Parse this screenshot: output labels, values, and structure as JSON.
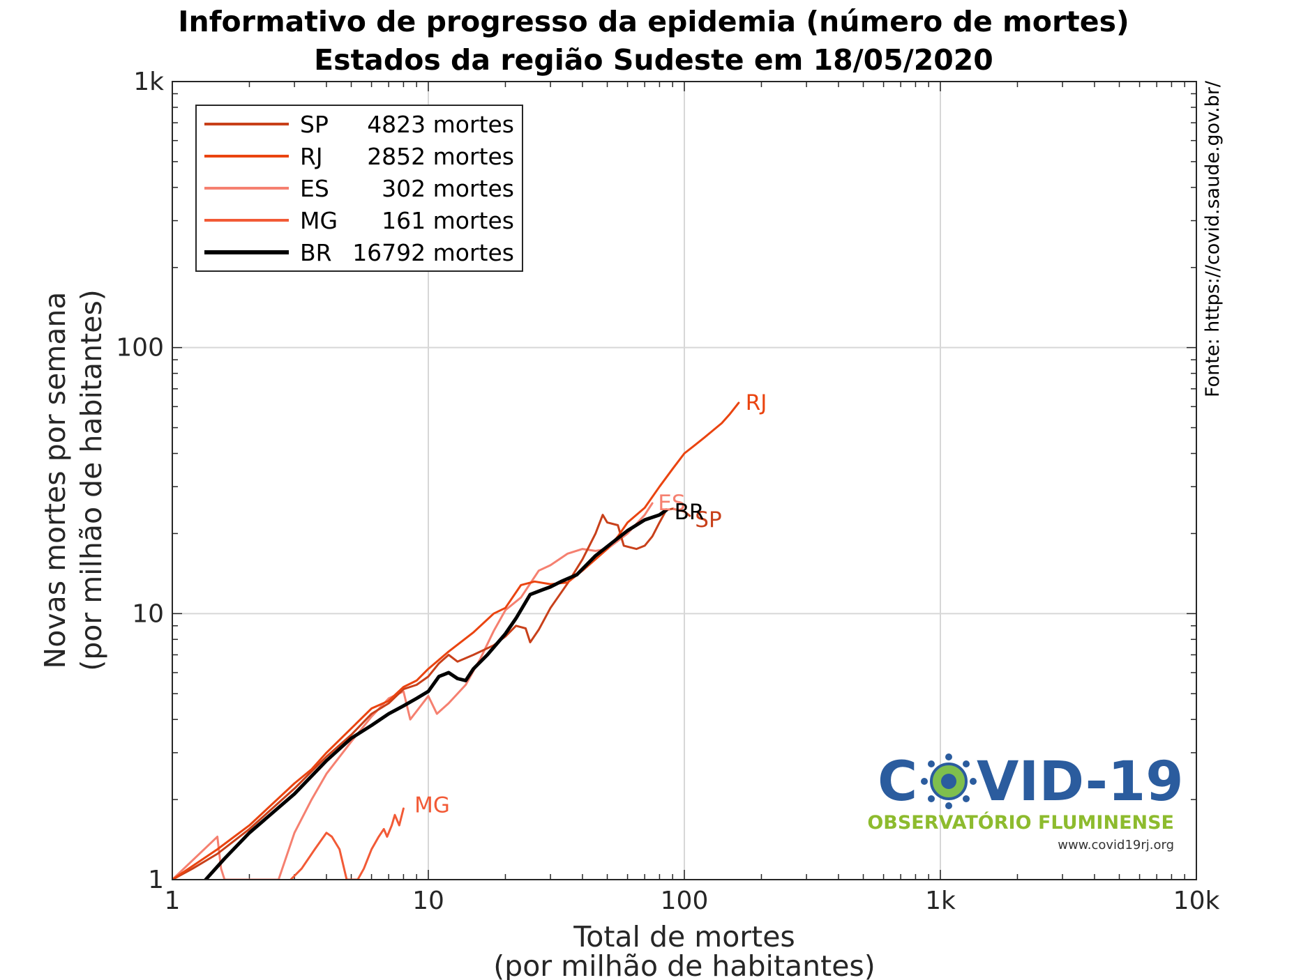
{
  "chart_data": {
    "type": "line",
    "title": "Informativo de progresso da epidemia (número de mortes)",
    "subtitle": "Estados da região Sudeste em 18/05/2020",
    "xlabel": "Total de mortes",
    "xlabel2": "(por milhão de habitantes)",
    "ylabel": "Novas mortes por semana",
    "ylabel2": "(por milhão de habitantes)",
    "xscale": "log",
    "yscale": "log",
    "xlim": [
      1,
      10000
    ],
    "ylim": [
      1,
      1000
    ],
    "xticks": [
      {
        "v": 1,
        "label": "1"
      },
      {
        "v": 10,
        "label": "10"
      },
      {
        "v": 100,
        "label": "100"
      },
      {
        "v": 1000,
        "label": "1k"
      },
      {
        "v": 10000,
        "label": "10k"
      }
    ],
    "yticks": [
      {
        "v": 1,
        "label": "1"
      },
      {
        "v": 10,
        "label": "10"
      },
      {
        "v": 100,
        "label": "100"
      },
      {
        "v": 1000,
        "label": "1k"
      }
    ],
    "grid": true,
    "legend_position": "top-left",
    "series": [
      {
        "name": "SP",
        "legend": "4823 mortes",
        "color": "#c8401a",
        "width": 3,
        "points": [
          [
            1,
            1.0
          ],
          [
            1.2,
            1.1
          ],
          [
            1.5,
            1.25
          ],
          [
            2,
            1.55
          ],
          [
            3,
            2.2
          ],
          [
            4,
            2.9
          ],
          [
            5,
            3.5
          ],
          [
            6,
            4.2
          ],
          [
            7,
            4.6
          ],
          [
            8,
            5.2
          ],
          [
            9,
            5.4
          ],
          [
            10,
            5.8
          ],
          [
            11,
            6.5
          ],
          [
            12,
            7.0
          ],
          [
            13,
            6.6
          ],
          [
            15,
            7.0
          ],
          [
            18,
            7.6
          ],
          [
            20,
            8.2
          ],
          [
            22,
            9.0
          ],
          [
            24,
            8.8
          ],
          [
            25,
            7.8
          ],
          [
            27,
            8.7
          ],
          [
            30,
            10.5
          ],
          [
            35,
            13.0
          ],
          [
            40,
            16.0
          ],
          [
            45,
            20.0
          ],
          [
            48,
            23.5
          ],
          [
            50,
            22.0
          ],
          [
            55,
            21.5
          ],
          [
            58,
            18.0
          ],
          [
            65,
            17.5
          ],
          [
            70,
            18.0
          ],
          [
            75,
            19.5
          ],
          [
            80,
            22.0
          ],
          [
            85,
            24.5
          ],
          [
            90,
            24.8
          ],
          [
            100,
            24.2
          ],
          [
            105,
            23.3
          ]
        ],
        "label_at": [
          106,
          22.5
        ]
      },
      {
        "name": "RJ",
        "legend": "2852 mortes",
        "color": "#ea4410",
        "width": 3,
        "points": [
          [
            1,
            1.0
          ],
          [
            1.5,
            1.3
          ],
          [
            2,
            1.6
          ],
          [
            3,
            2.3
          ],
          [
            3.5,
            2.6
          ],
          [
            4,
            3.0
          ],
          [
            5,
            3.7
          ],
          [
            6,
            4.4
          ],
          [
            7,
            4.7
          ],
          [
            8,
            5.3
          ],
          [
            9,
            5.6
          ],
          [
            10,
            6.2
          ],
          [
            12,
            7.2
          ],
          [
            15,
            8.5
          ],
          [
            18,
            10.0
          ],
          [
            20,
            10.5
          ],
          [
            23,
            12.8
          ],
          [
            26,
            13.2
          ],
          [
            30,
            12.9
          ],
          [
            35,
            13.1
          ],
          [
            40,
            14.5
          ],
          [
            50,
            17.5
          ],
          [
            55,
            19.5
          ],
          [
            60,
            22.0
          ],
          [
            70,
            25.0
          ],
          [
            80,
            30.0
          ],
          [
            90,
            35.0
          ],
          [
            100,
            40.0
          ],
          [
            110,
            43.0
          ],
          [
            120,
            46.0
          ],
          [
            130,
            49.0
          ],
          [
            140,
            52.0
          ],
          [
            150,
            56.0
          ],
          [
            163,
            62.0
          ]
        ],
        "label_at": [
          167,
          62
        ]
      },
      {
        "name": "ES",
        "legend": "302 mortes",
        "color": "#f58070",
        "width": 3,
        "points": [
          [
            1,
            1.0
          ],
          [
            1.5,
            1.45
          ],
          [
            1.55,
            1.1
          ],
          [
            1.6,
            1.0
          ],
          [
            2.6,
            1.0
          ],
          [
            3,
            1.5
          ],
          [
            3.5,
            2.0
          ],
          [
            4,
            2.5
          ],
          [
            5,
            3.3
          ],
          [
            6,
            4.1
          ],
          [
            7,
            4.8
          ],
          [
            8,
            5.1
          ],
          [
            8.5,
            4.0
          ],
          [
            10,
            4.9
          ],
          [
            10.8,
            4.2
          ],
          [
            12,
            4.6
          ],
          [
            14,
            5.4
          ],
          [
            16,
            6.8
          ],
          [
            18,
            8.6
          ],
          [
            20,
            10.3
          ],
          [
            23,
            11.5
          ],
          [
            27,
            14.5
          ],
          [
            30,
            15.2
          ],
          [
            35,
            16.8
          ],
          [
            40,
            17.5
          ],
          [
            45,
            17.2
          ],
          [
            50,
            17.5
          ],
          [
            60,
            20.0
          ],
          [
            70,
            23.5
          ],
          [
            75,
            26.0
          ]
        ],
        "label_at": [
          76,
          26
        ]
      },
      {
        "name": "MG",
        "legend": "161 mortes",
        "color": "#f25a36",
        "width": 3,
        "points": [
          [
            2.9,
            1.0
          ],
          [
            3.2,
            1.1
          ],
          [
            3.6,
            1.3
          ],
          [
            4.0,
            1.5
          ],
          [
            4.2,
            1.45
          ],
          [
            4.5,
            1.3
          ],
          [
            4.8,
            1.0
          ],
          [
            5.3,
            1.0
          ],
          [
            5.6,
            1.1
          ],
          [
            6,
            1.3
          ],
          [
            6.4,
            1.45
          ],
          [
            6.7,
            1.55
          ],
          [
            6.9,
            1.45
          ],
          [
            7.2,
            1.6
          ],
          [
            7.4,
            1.75
          ],
          [
            7.7,
            1.6
          ],
          [
            8,
            1.85
          ]
        ],
        "label_at": [
          8.5,
          1.9
        ]
      },
      {
        "name": "BR",
        "legend": "16792 mortes",
        "color": "#000000",
        "width": 5,
        "points": [
          [
            1.35,
            1.0
          ],
          [
            1.6,
            1.2
          ],
          [
            2,
            1.5
          ],
          [
            3,
            2.1
          ],
          [
            4,
            2.8
          ],
          [
            5,
            3.4
          ],
          [
            6,
            3.8
          ],
          [
            7,
            4.2
          ],
          [
            8,
            4.5
          ],
          [
            9,
            4.8
          ],
          [
            10,
            5.1
          ],
          [
            11,
            5.8
          ],
          [
            12,
            6.0
          ],
          [
            13,
            5.7
          ],
          [
            14,
            5.6
          ],
          [
            15,
            6.2
          ],
          [
            17,
            7.0
          ],
          [
            20,
            8.4
          ],
          [
            22,
            9.6
          ],
          [
            25,
            11.8
          ],
          [
            28,
            12.3
          ],
          [
            30,
            12.6
          ],
          [
            33,
            13.2
          ],
          [
            38,
            14.0
          ],
          [
            45,
            16.5
          ],
          [
            55,
            19.2
          ],
          [
            60,
            20.5
          ],
          [
            70,
            22.5
          ],
          [
            80,
            23.5
          ],
          [
            85,
            24.5
          ]
        ],
        "label_at": [
          88,
          24
        ]
      }
    ],
    "source_text": "Fonte: https://covid.saude.gov.br/"
  },
  "logo": {
    "word_left": "C",
    "word_right": "VID-19",
    "subtitle": "OBSERVATÓRIO FLUMINENSE",
    "url": "www.covid19rj.org"
  }
}
